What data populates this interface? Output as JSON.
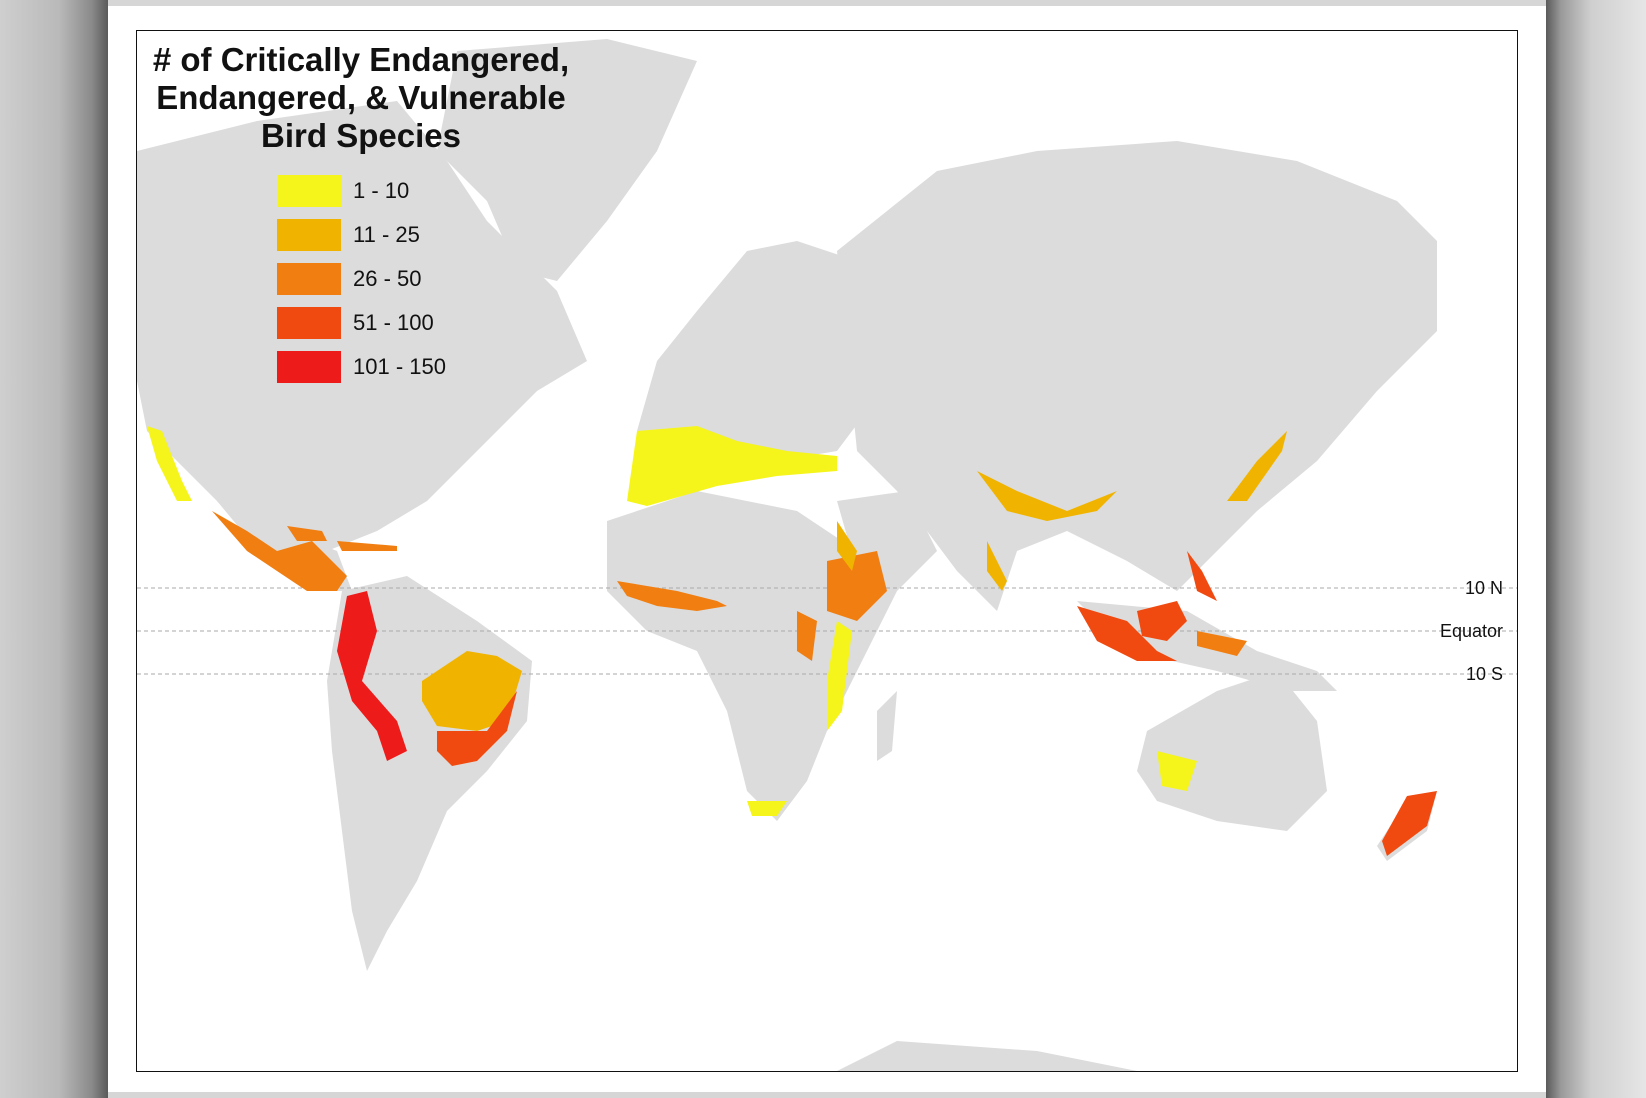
{
  "title_lines": [
    "# of Critically Endangered,",
    "Endangered, & Vulnerable",
    "Bird Species"
  ],
  "legend": [
    {
      "label": "1 - 10",
      "color": "#f5f51c"
    },
    {
      "label": "11 - 25",
      "color": "#f0b400"
    },
    {
      "label": "26 - 50",
      "color": "#f07e10"
    },
    {
      "label": "51 - 100",
      "color": "#f04a10"
    },
    {
      "label": "101 - 150",
      "color": "#ee1b1b"
    }
  ],
  "reference_lines": {
    "n10": "10 N",
    "equator": "Equator",
    "s10": "10 S"
  },
  "colors": {
    "land": "#dcdcdc",
    "ocean": "#ffffff"
  }
}
